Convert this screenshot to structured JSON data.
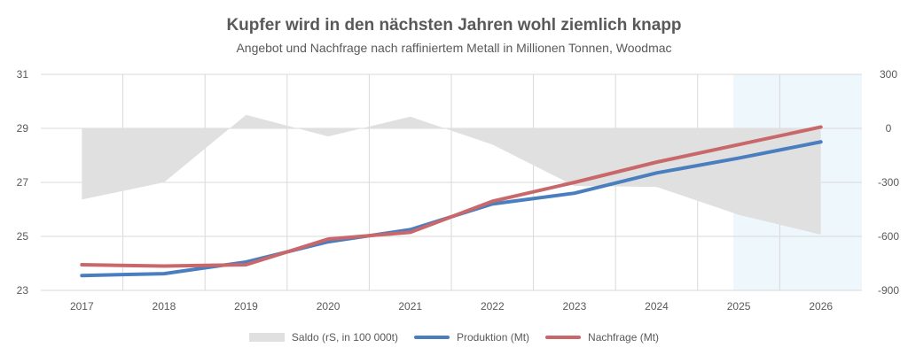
{
  "chart_data": {
    "type": "line",
    "title": "Kupfer wird in den nächsten Jahren wohl ziemlich knapp",
    "subtitle": "Angebot und Nachfrage nach raffiniertem Metall in Millionen Tonnen, Woodmac",
    "categories": [
      "2017",
      "2018",
      "2019",
      "2020",
      "2021",
      "2022",
      "2023",
      "2024",
      "2025",
      "2026"
    ],
    "ylim": [
      23,
      31
    ],
    "yticks": [
      23,
      25,
      27,
      29,
      31
    ],
    "y2lim": [
      -900,
      300
    ],
    "y2ticks": [
      -900,
      -600,
      -300,
      0,
      300
    ],
    "highlight_region": [
      "2025",
      "2026"
    ],
    "series": [
      {
        "name": "Saldo (rS, in 100 000t)",
        "type": "area",
        "axis": "right",
        "color": "#e0e0e0",
        "x": [
          2017,
          2018,
          2019,
          2020,
          2021,
          2022,
          2023,
          2024,
          2025,
          2026
        ],
        "values": [
          -395,
          -300,
          75,
          -45,
          65,
          -90,
          -320,
          -325,
          -480,
          -590
        ]
      },
      {
        "name": "Produktion (Mt)",
        "type": "line",
        "axis": "left",
        "color": "#4a7ebf",
        "x": [
          2017,
          2018,
          2019,
          2020,
          2021,
          2022,
          2023,
          2024,
          2025,
          2026
        ],
        "values": [
          23.55,
          23.62,
          24.05,
          24.8,
          25.25,
          26.2,
          26.6,
          27.35,
          27.9,
          28.5
        ]
      },
      {
        "name": "Nachfrage (Mt)",
        "type": "line",
        "axis": "left",
        "color": "#c9686a",
        "x": [
          2017,
          2018,
          2019,
          2020,
          2021,
          2022,
          2023,
          2024,
          2025,
          2026
        ],
        "values": [
          23.95,
          23.9,
          23.95,
          24.9,
          25.15,
          26.3,
          27.0,
          27.75,
          28.4,
          29.05
        ]
      }
    ]
  }
}
